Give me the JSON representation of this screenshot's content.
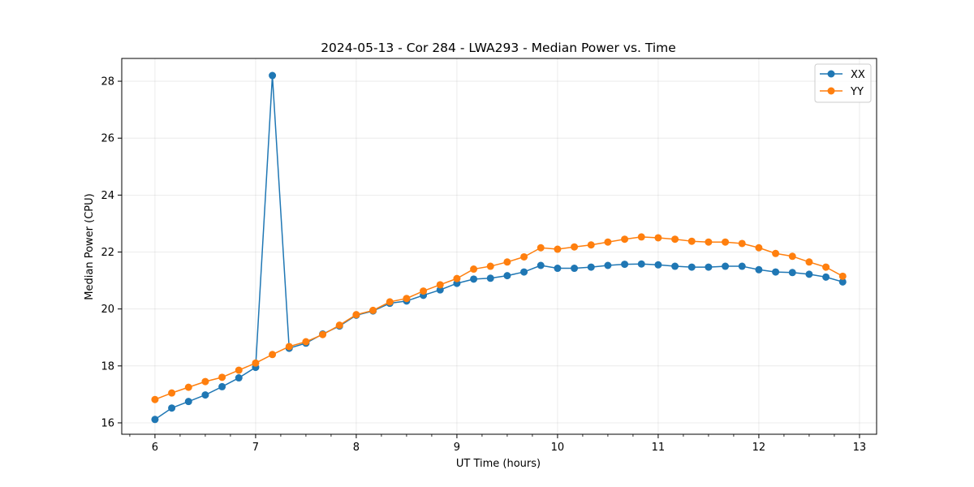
{
  "chart_data": {
    "type": "line",
    "title": "2024-05-13 - Cor 284 - LWA293 - Median Power vs. Time",
    "xlabel": "UT Time (hours)",
    "ylabel": "Median Power (CPU)",
    "xlim": [
      5.67,
      13.17
    ],
    "ylim": [
      15.6,
      28.8
    ],
    "xticks": [
      6,
      7,
      8,
      9,
      10,
      11,
      12,
      13
    ],
    "xticks_minor": [
      5.75,
      6.25,
      6.5,
      6.75,
      7.25,
      7.5,
      7.75,
      8.25,
      8.5,
      8.75,
      9.25,
      9.5,
      9.75,
      10.25,
      10.5,
      10.75,
      11.25,
      11.5,
      11.75,
      12.25,
      12.5,
      12.75,
      13.0
    ],
    "yticks": [
      16,
      18,
      20,
      22,
      24,
      26,
      28
    ],
    "grid": true,
    "legend": {
      "placement": "top-right"
    },
    "x": [
      6.0,
      6.1667,
      6.3333,
      6.5,
      6.6667,
      6.8333,
      7.0,
      7.1667,
      7.3333,
      7.5,
      7.6667,
      7.8333,
      8.0,
      8.1667,
      8.3333,
      8.5,
      8.6667,
      8.8333,
      9.0,
      9.1667,
      9.3333,
      9.5,
      9.6667,
      9.8333,
      10.0,
      10.1667,
      10.3333,
      10.5,
      10.6667,
      10.8333,
      11.0,
      11.1667,
      11.3333,
      11.5,
      11.6667,
      11.8333,
      12.0,
      12.1667,
      12.3333,
      12.5,
      12.6667,
      12.8333
    ],
    "series": [
      {
        "name": "XX",
        "color": "#1f77b4",
        "values": [
          16.12,
          16.52,
          16.75,
          16.98,
          17.27,
          17.58,
          17.95,
          28.2,
          18.62,
          18.8,
          19.12,
          19.4,
          19.78,
          19.93,
          20.2,
          20.28,
          20.48,
          20.67,
          20.9,
          21.05,
          21.08,
          21.17,
          21.3,
          21.53,
          21.43,
          21.43,
          21.47,
          21.53,
          21.57,
          21.58,
          21.55,
          21.5,
          21.47,
          21.47,
          21.5,
          21.5,
          21.38,
          21.3,
          21.28,
          21.22,
          21.12,
          20.95
        ]
      },
      {
        "name": "YY",
        "color": "#ff7f0e",
        "values": [
          16.82,
          17.05,
          17.25,
          17.45,
          17.6,
          17.85,
          18.1,
          18.4,
          18.68,
          18.85,
          19.1,
          19.43,
          19.8,
          19.95,
          20.25,
          20.37,
          20.63,
          20.85,
          21.07,
          21.4,
          21.5,
          21.65,
          21.83,
          22.15,
          22.1,
          22.18,
          22.25,
          22.35,
          22.45,
          22.53,
          22.5,
          22.45,
          22.38,
          22.35,
          22.35,
          22.3,
          22.15,
          21.95,
          21.85,
          21.65,
          21.47,
          21.15
        ]
      }
    ]
  }
}
